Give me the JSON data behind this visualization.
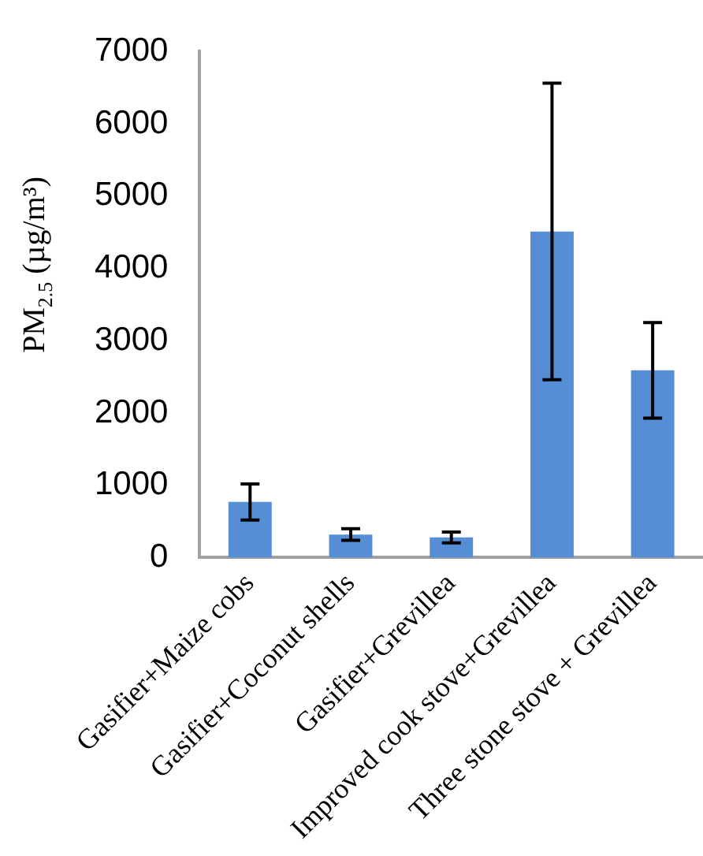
{
  "chart_data": {
    "type": "bar",
    "ylabel": "PM$_{2.5}$ (µg/m³)",
    "categories": [
      "Gasifier+Maize cobs",
      "Gasifier+Coconut shells",
      "Gasifier+Grevillea",
      "Improved cook stove+Grevillea",
      "Three stone stove + Grevillea"
    ],
    "values": [
      770,
      320,
      280,
      4510,
      2590
    ],
    "errors": [
      250,
      80,
      75,
      2050,
      660
    ],
    "color": "#558ed5",
    "ylim": [
      0,
      7000
    ],
    "yticks": [
      0,
      1000,
      2000,
      3000,
      4000,
      5000,
      6000,
      7000
    ],
    "grid": false,
    "legend": false
  }
}
